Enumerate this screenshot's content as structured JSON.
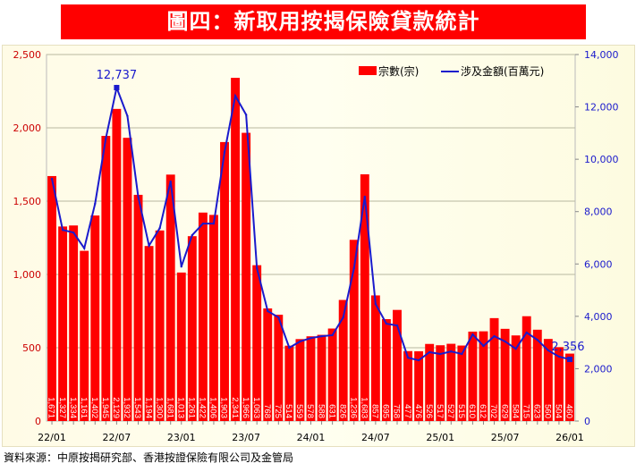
{
  "title": "圖四：新取用按揭保險貸款統計",
  "source": "資料來源：中原按揭研究部、香港按證保險有限公司及金管局",
  "chart_data": {
    "type": "bar+line",
    "title": "圖四：新取用按揭保險貸款統計",
    "categories": [
      "22/01",
      "22/02",
      "22/03",
      "22/04",
      "22/05",
      "22/06",
      "22/07",
      "22/08",
      "22/09",
      "22/10",
      "22/11",
      "22/12",
      "23/01",
      "23/02",
      "23/03",
      "23/04",
      "23/05",
      "23/06",
      "23/07",
      "23/08",
      "23/09",
      "23/10",
      "23/11",
      "23/12",
      "24/01",
      "24/02",
      "24/03",
      "24/04",
      "24/05",
      "24/06",
      "24/07",
      "24/08",
      "24/09",
      "24/10",
      "24/11",
      "24/12",
      "25/01",
      "25/02",
      "25/03",
      "25/04",
      "25/05",
      "25/06",
      "25/07",
      "25/08",
      "25/09",
      "25/10",
      "25/11",
      "25/12",
      "26/01"
    ],
    "x_tick_labels": [
      "22/01",
      "22/07",
      "23/01",
      "23/07",
      "24/01",
      "24/07",
      "25/01",
      "25/07",
      "26/01"
    ],
    "series": [
      {
        "name": "宗數(宗)",
        "type": "bar",
        "axis": "left",
        "color": "#ff0000",
        "values": [
          1671,
          1327,
          1334,
          1161,
          1402,
          1945,
          2129,
          1932,
          1543,
          1194,
          1300,
          1681,
          1013,
          1261,
          1422,
          1406,
          1903,
          2341,
          1966,
          1063,
          768,
          725,
          514,
          559,
          578,
          588,
          631,
          826,
          1236,
          1683,
          857,
          695,
          758,
          477,
          476,
          526,
          517,
          527,
          515,
          610,
          612,
          702,
          629,
          584,
          715,
          623,
          560,
          504,
          460
        ]
      },
      {
        "name": "涉及金額(百萬元)",
        "type": "line",
        "axis": "right",
        "color": "#1a1acc",
        "values": [
          9250,
          7300,
          7200,
          6600,
          8300,
          10800,
          12737,
          11650,
          8570,
          6700,
          7370,
          9150,
          5900,
          7100,
          7540,
          7540,
          10270,
          12420,
          11700,
          5840,
          4200,
          3960,
          2800,
          3040,
          3170,
          3240,
          3280,
          3960,
          5840,
          8570,
          4470,
          3720,
          3650,
          2420,
          2320,
          2630,
          2560,
          2660,
          2560,
          3310,
          2870,
          3240,
          3040,
          2760,
          3380,
          3100,
          2700,
          2460,
          2356
        ]
      }
    ],
    "annotations": [
      {
        "category": "22/07",
        "label": "12,737"
      },
      {
        "category": "26/01",
        "label": "2,356"
      }
    ],
    "left_axis": {
      "ylim": [
        0,
        2500
      ],
      "ticks": [
        "0",
        "500",
        "1,000",
        "1,500",
        "2,000",
        "2,500"
      ],
      "color": "#cc0000"
    },
    "right_axis": {
      "ylim": [
        0,
        14000
      ],
      "ticks": [
        "0",
        "2,000",
        "4,000",
        "6,000",
        "8,000",
        "10,000",
        "12,000",
        "14,000"
      ],
      "color": "#1a1acc"
    },
    "grid": true,
    "legend": "top-right"
  }
}
